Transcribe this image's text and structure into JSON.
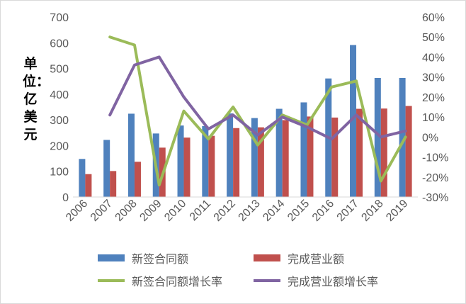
{
  "chart_data": {
    "type": "bar",
    "unit_label": "单位：亿美元",
    "categories": [
      "2006",
      "2007",
      "2008",
      "2009",
      "2010",
      "2011",
      "2012",
      "2013",
      "2014",
      "2015",
      "2016",
      "2017",
      "2018",
      "2019"
    ],
    "left_axis": {
      "ylim": [
        0,
        700
      ],
      "ticks": [
        "0",
        "100",
        "200",
        "300",
        "400",
        "500",
        "600",
        "700"
      ]
    },
    "right_axis": {
      "ylim": [
        -30,
        60
      ],
      "ticks": [
        "-30%",
        "-20%",
        "-10%",
        "0%",
        "10%",
        "20%",
        "30%",
        "40%",
        "50%",
        "60%"
      ]
    },
    "series": [
      {
        "name": "新签合同额",
        "type": "bar",
        "axis": "left",
        "color": "#4f81bd",
        "values": [
          148,
          222,
          324,
          247,
          278,
          276,
          325,
          307,
          343,
          368,
          461,
          591,
          463,
          463
        ]
      },
      {
        "name": "完成营业额",
        "type": "bar",
        "axis": "left",
        "color": "#c0504d",
        "values": [
          89,
          101,
          137,
          192,
          231,
          238,
          268,
          271,
          299,
          313,
          309,
          343,
          344,
          354
        ]
      },
      {
        "name": "新签合同额增长率",
        "type": "line",
        "axis": "right",
        "color": "#9bbb59",
        "values": [
          null,
          50,
          46,
          -24,
          13,
          -1,
          15,
          -4,
          11,
          6,
          25,
          28,
          -22,
          0
        ]
      },
      {
        "name": "完成营业额增长率",
        "type": "line",
        "axis": "right",
        "color": "#8064a2",
        "values": [
          null,
          11,
          36,
          40,
          20,
          4,
          11,
          1,
          10,
          5,
          -1,
          11,
          0,
          3
        ]
      }
    ],
    "grid": false,
    "legend_position": "bottom"
  }
}
